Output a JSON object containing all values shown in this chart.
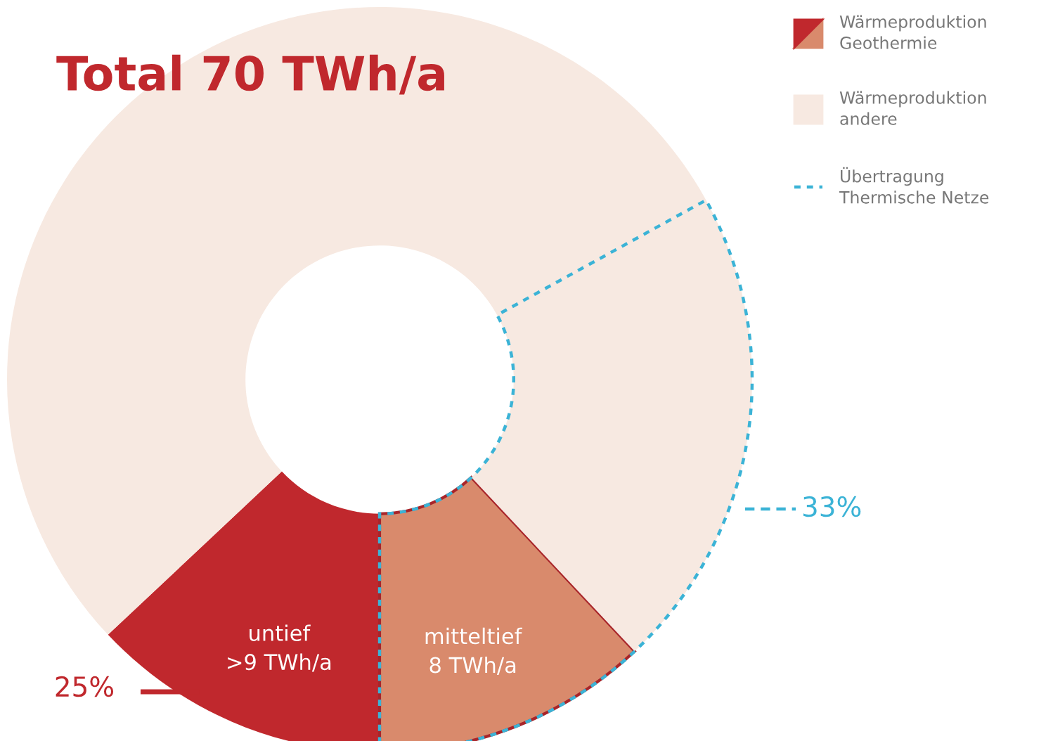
{
  "chart_data": {
    "type": "donut",
    "title": "Total 70 TWh/a",
    "categories": [
      "untief\n>9 TWh/a",
      "mitteltief\n8 TWh/a",
      null
    ],
    "values": [
      13,
      12,
      75
    ],
    "colors": [
      "#c0282d",
      "#d98a6c",
      "#f7e9e1"
    ],
    "annotations": [
      "25%",
      "33%",
      "Wärmeproduktion\nGeothermie",
      "Wärmeproduktion\nandere",
      "Übertragung\nThermische Netze"
    ]
  }
}
